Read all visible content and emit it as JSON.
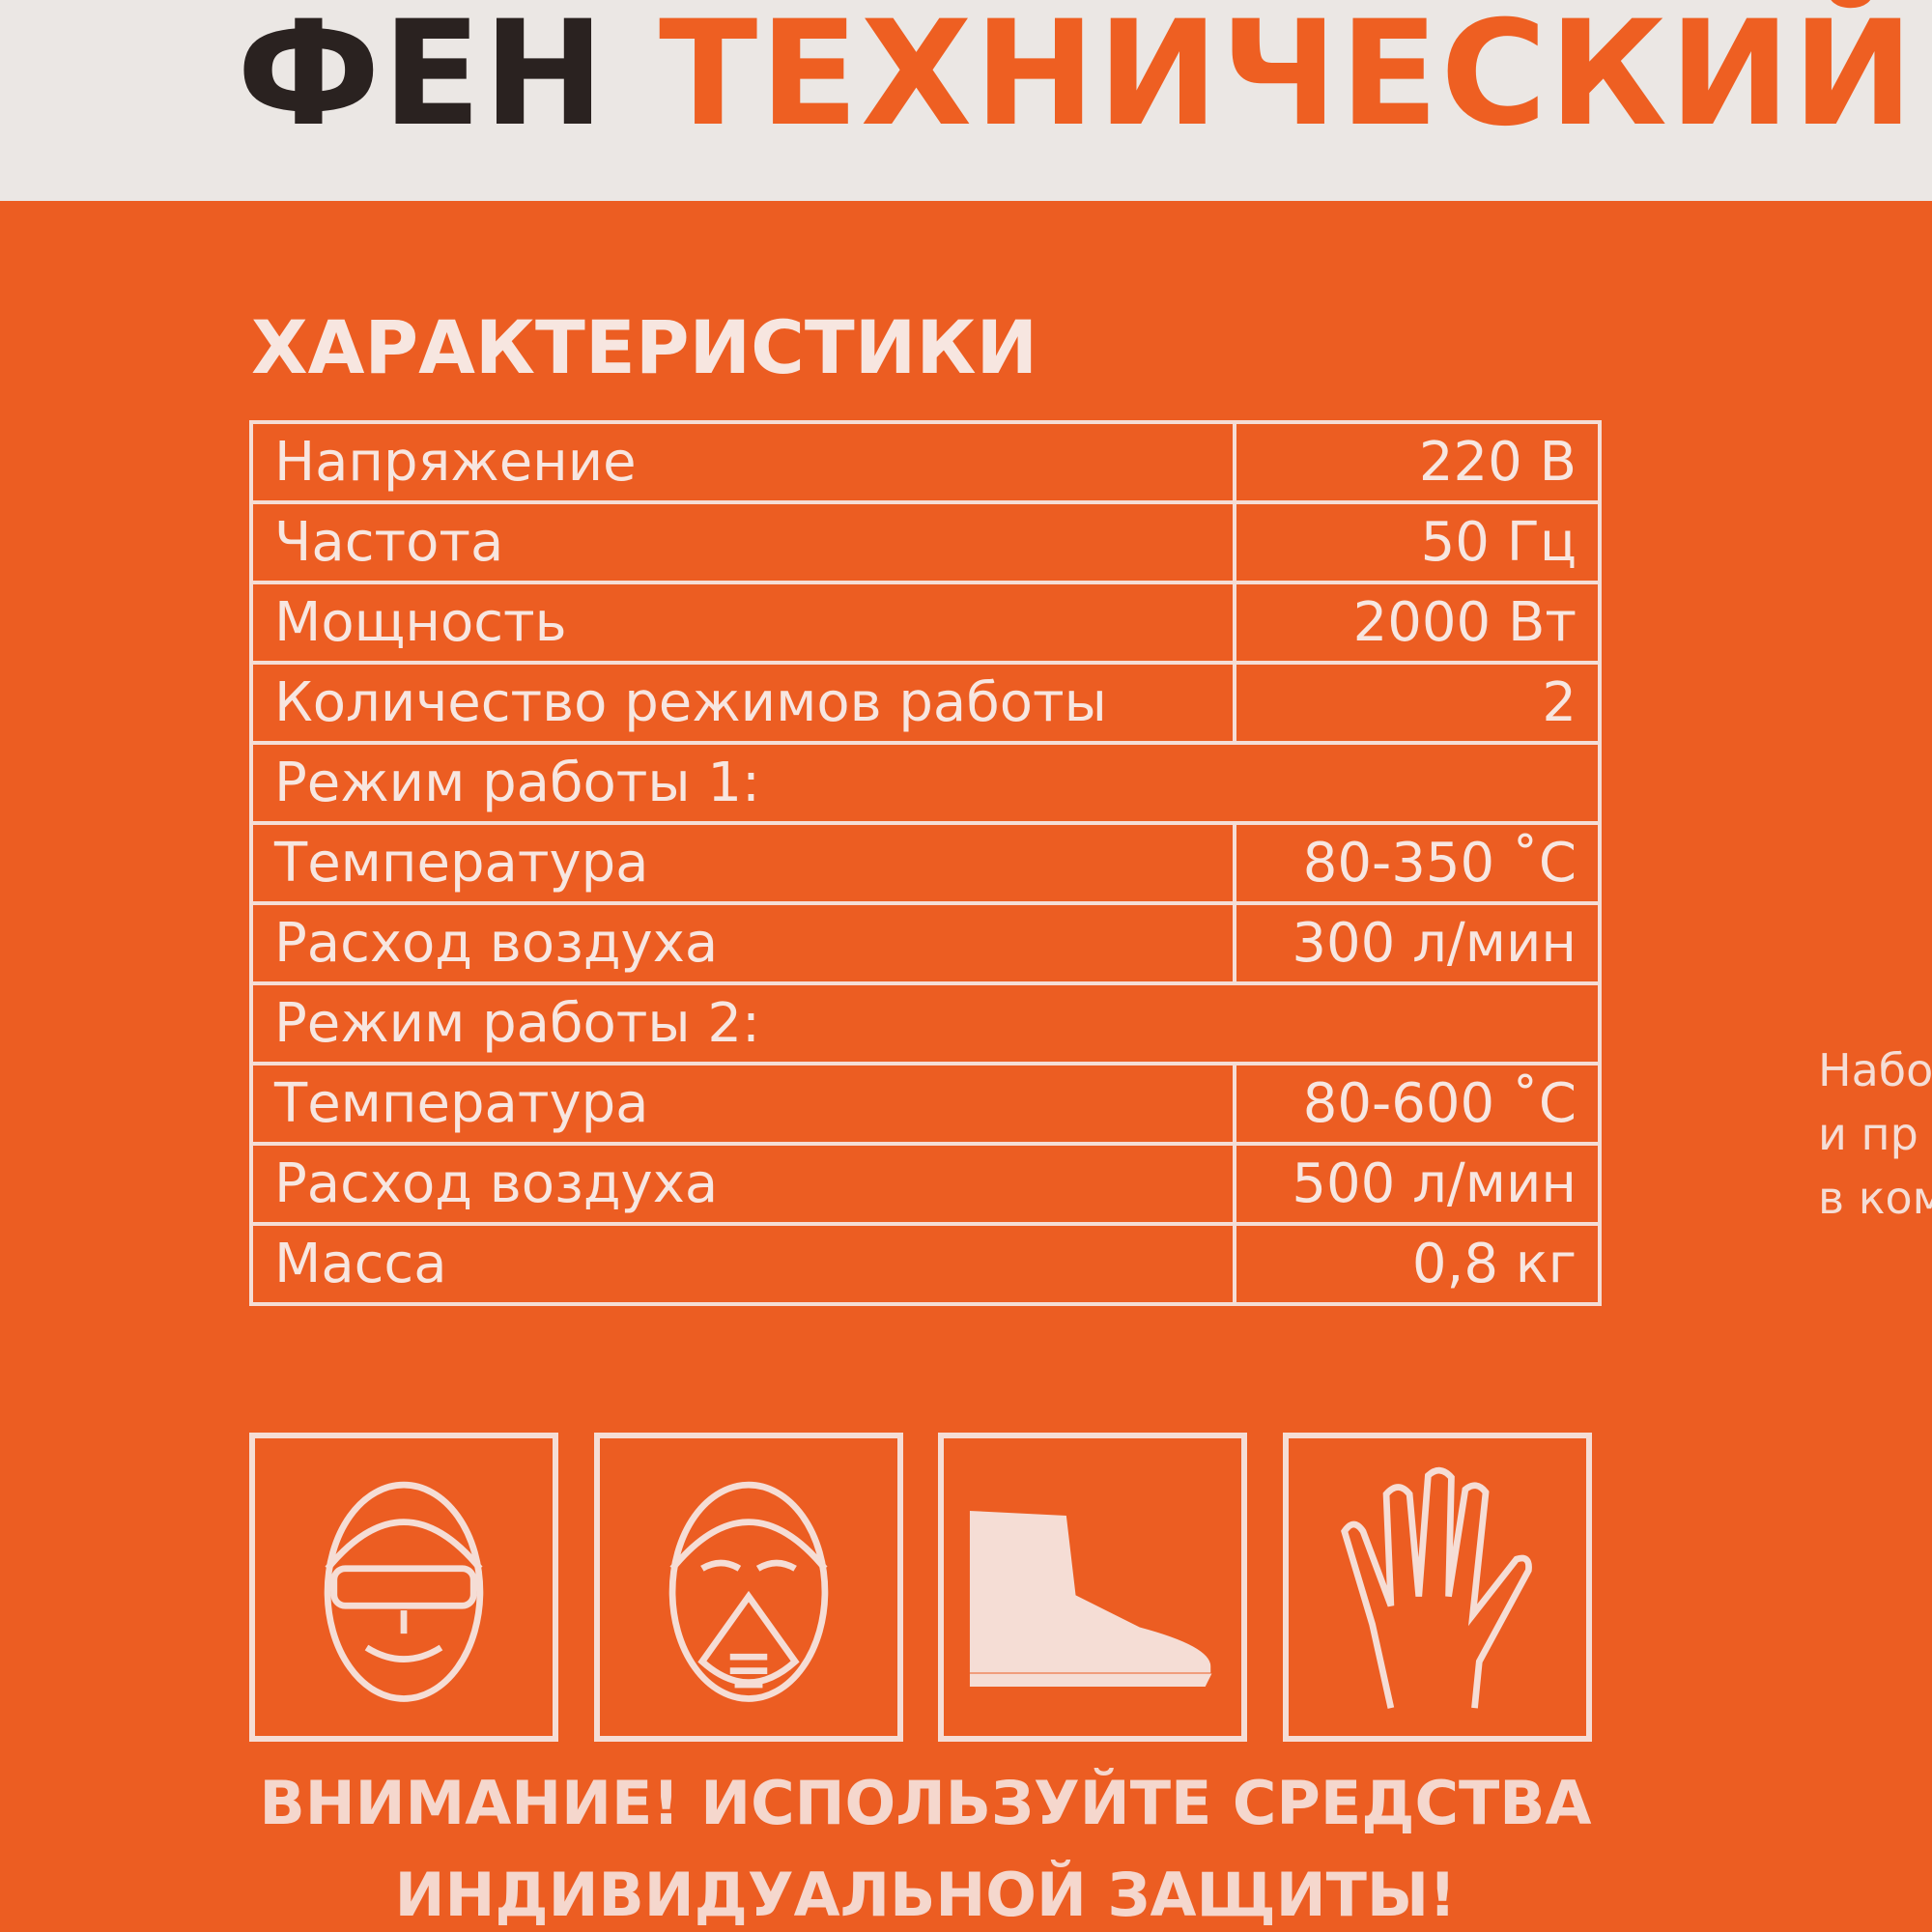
{
  "header": {
    "title_dark": "ФЕН",
    "title_accent": "ТЕХНИЧЕСКИЙ"
  },
  "colors": {
    "orange": "#ec5d22",
    "header_bg": "#ebe7e4",
    "dark": "#2a2220",
    "light": "#f7e6e0"
  },
  "specs": {
    "heading": "ХАРАКТЕРИСТИКИ",
    "rows": [
      {
        "label": "Напряжение",
        "value": "220 В"
      },
      {
        "label": "Частота",
        "value": "50 Гц"
      },
      {
        "label": "Мощность",
        "value": "2000 Вт"
      },
      {
        "label": "Количество режимов работы",
        "value": "2"
      },
      {
        "label": "Режим работы 1:",
        "value": null
      },
      {
        "label": "Температура",
        "value": "80-350 ˚С"
      },
      {
        "label": "Расход воздуха",
        "value": "300 л/мин"
      },
      {
        "label": "Режим работы 2:",
        "value": null
      },
      {
        "label": "Температура",
        "value": "80-600 ˚С"
      },
      {
        "label": "Расход воздуха",
        "value": "500 л/мин"
      },
      {
        "label": "Масса",
        "value": "0,8 кг"
      }
    ]
  },
  "icons": [
    "safety-goggles-icon",
    "respirator-icon",
    "safety-boot-icon",
    "glove-icon"
  ],
  "warning": {
    "line1": "ВНИМАНИЕ! ИСПОЛЬЗУЙТЕ СРЕДСТВА",
    "line2": "ИНДИВИДУАЛЬНОЙ ЗАЩИТЫ!"
  },
  "side_text": {
    "line1": "Набо",
    "line2": "и пр",
    "line3": "в ком"
  }
}
